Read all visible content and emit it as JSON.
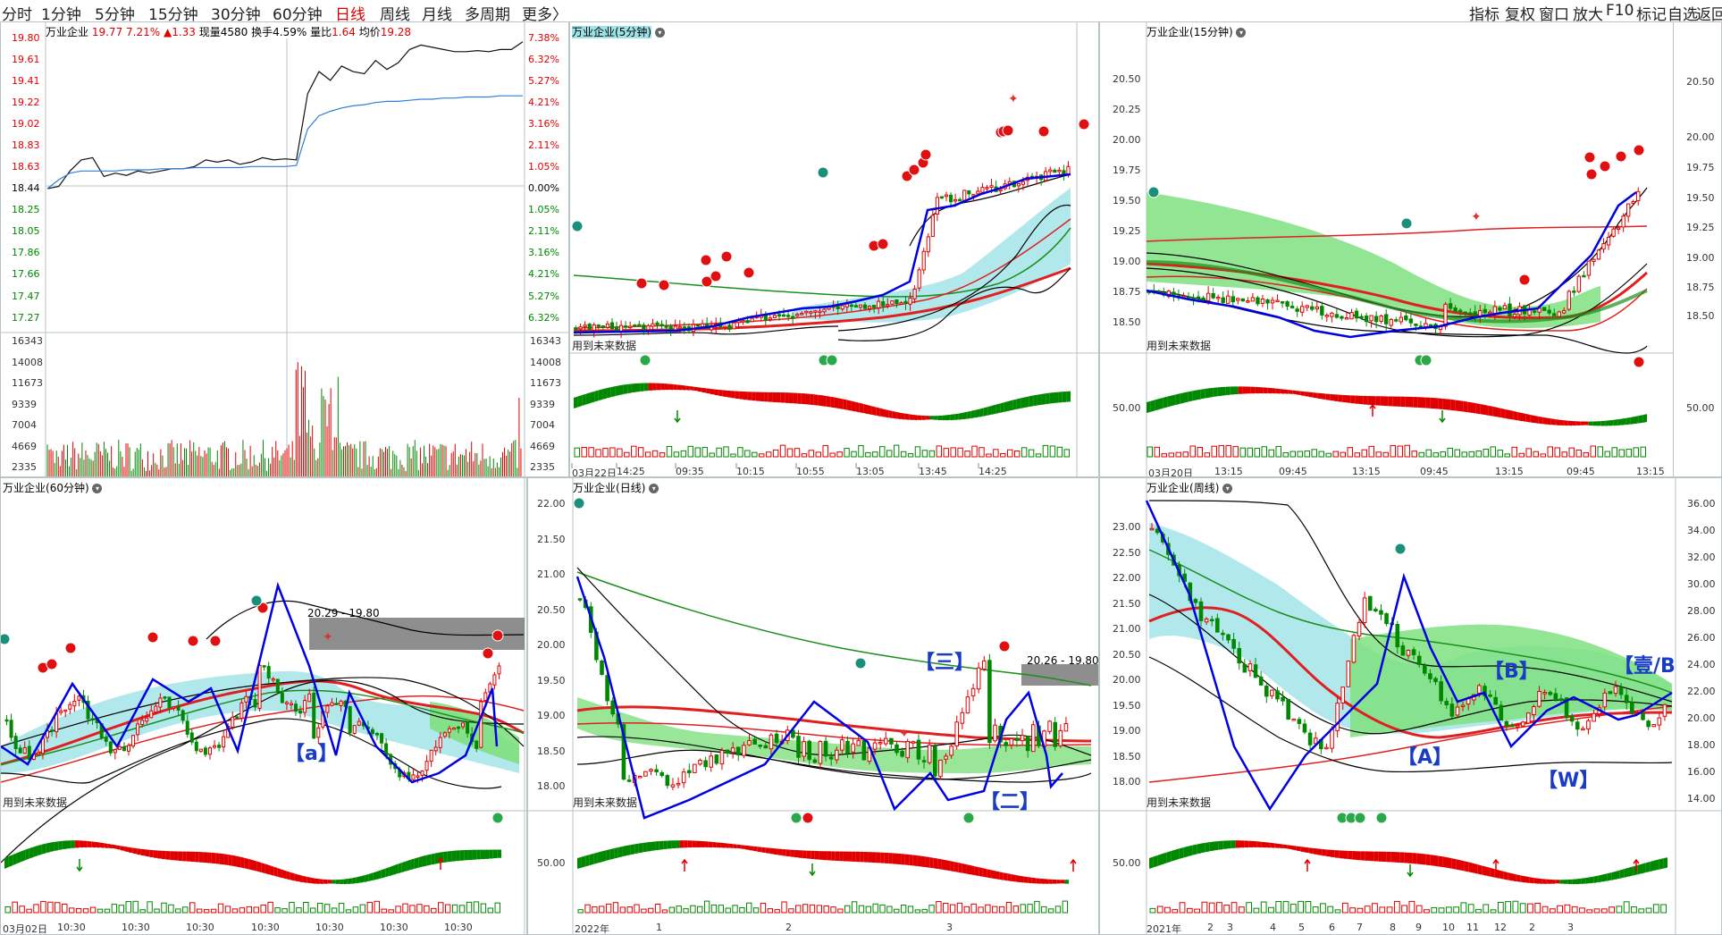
{
  "toolbar": {
    "periods": [
      "分时",
      "1分钟",
      "5分钟",
      "15分钟",
      "30分钟",
      "60分钟",
      "日线",
      "周线",
      "月线",
      "多周期",
      "更多〉"
    ],
    "active": "日线",
    "right": [
      "指标",
      "复权",
      "窗口",
      "放大",
      "F10",
      "标记",
      "自选",
      "返回"
    ]
  },
  "intraday": {
    "title": "万业企业",
    "price": "19.77",
    "pct": "7.21%",
    "chg": "▲1.33",
    "vol_label": "现量",
    "vol": "4580",
    "turnover_label": "换手",
    "turnover": "4.59%",
    "ratio_label": "量比",
    "ratio": "1.64",
    "avg_label": "均价",
    "avg": "19.28",
    "price_axis": [
      "19.80",
      "19.61",
      "19.41",
      "19.22",
      "19.02",
      "18.83",
      "18.63",
      "18.44",
      "18.25",
      "18.05",
      "17.86",
      "17.66",
      "17.47",
      "17.27"
    ],
    "pct_axis": [
      "7.38%",
      "6.32%",
      "5.27%",
      "4.21%",
      "3.16%",
      "2.11%",
      "1.05%",
      "0.00%",
      "1.05%",
      "2.11%",
      "3.16%",
      "4.21%",
      "5.27%",
      "6.32%"
    ],
    "vol_axis": [
      "16343",
      "14008",
      "11673",
      "9339",
      "7004",
      "4669",
      "2335"
    ],
    "price_line": [
      18.44,
      18.46,
      18.6,
      18.7,
      18.72,
      18.55,
      18.58,
      18.56,
      18.6,
      18.58,
      18.6,
      18.62,
      18.62,
      18.64,
      18.7,
      18.68,
      18.7,
      18.66,
      18.68,
      18.72,
      18.7,
      18.71,
      18.7,
      19.3,
      19.5,
      19.42,
      19.55,
      19.5,
      19.48,
      19.6,
      19.52,
      19.58,
      19.7,
      19.74,
      19.72,
      19.7,
      19.68,
      19.68,
      19.69,
      19.68,
      19.7,
      19.7,
      19.77
    ],
    "avg_line": [
      18.44,
      18.52,
      18.58,
      18.6,
      18.6,
      18.6,
      18.6,
      18.61,
      18.61,
      18.61,
      18.62,
      18.62,
      18.62,
      18.63,
      18.63,
      18.63,
      18.63,
      18.63,
      18.64,
      18.64,
      18.64,
      18.64,
      18.65,
      18.98,
      19.1,
      19.14,
      19.17,
      19.19,
      19.2,
      19.22,
      19.23,
      19.23,
      19.24,
      19.25,
      19.25,
      19.26,
      19.26,
      19.27,
      19.27,
      19.27,
      19.28,
      19.28,
      19.28
    ]
  },
  "panels": {
    "p5": {
      "title": "万业企业",
      "period": "(5分钟)",
      "axis": [],
      "times": [
        "03月22日",
        "14:25",
        "09:35",
        "10:15",
        "10:55",
        "13:05",
        "13:45",
        "14:25"
      ],
      "future": "用到未来数据"
    },
    "p15": {
      "title": "万业企业",
      "period": "(15分钟)",
      "axis": [
        "20.50",
        "20.25",
        "20.00",
        "19.75",
        "19.50",
        "19.25",
        "19.00",
        "18.75",
        "18.50"
      ],
      "sub_axis": "50.00",
      "times": [
        "03月20日",
        "13:15",
        "09:45",
        "13:15",
        "09:45",
        "13:15",
        "09:45",
        "13:15"
      ],
      "future": "用到未来数据"
    },
    "p60": {
      "title": "万业企业",
      "period": "(60分钟)",
      "range": "20.29 - 19.80",
      "label_a": "【a】",
      "times": [
        "03月02日",
        "10:30",
        "10:30",
        "10:30",
        "10:30",
        "10:30",
        "10:30",
        "10:30"
      ],
      "future": "用到未来数据"
    },
    "pday": {
      "title": "万业企业",
      "period": "(日线)",
      "axis": [
        "22.00",
        "21.50",
        "21.00",
        "20.50",
        "20.00",
        "19.50",
        "19.00",
        "18.50",
        "18.00"
      ],
      "sub_axis": "50.00",
      "range": "20.26 - 19.80",
      "label_3": "【三】",
      "label_2": "【二】",
      "times": [
        "2022年",
        "1",
        "2",
        "3"
      ],
      "future": "用到未来数据"
    },
    "pweek": {
      "title": "万业企业",
      "period": "(周线)",
      "axis": [
        "23.00",
        "22.50",
        "22.00",
        "21.50",
        "21.00",
        "20.50",
        "20.00",
        "19.50",
        "19.00",
        "18.50",
        "18.00"
      ],
      "axis_r": [
        "36.00",
        "34.00",
        "32.00",
        "30.00",
        "28.00",
        "26.00",
        "24.00",
        "22.00",
        "20.00",
        "18.00",
        "16.00",
        "14.00"
      ],
      "sub_axis": "50.00",
      "label_B": "【B】",
      "label_A": "【A】",
      "label_W": "【W】",
      "label_1B": "【壹/B",
      "times": [
        "2021年",
        "2",
        "3",
        "4",
        "5",
        "6",
        "7",
        "8",
        "9",
        "10",
        "11",
        "12",
        "2",
        "3"
      ],
      "future": "用到未来数据"
    },
    "p15r": {
      "axis": [
        "20.50",
        "20.00",
        "19.75",
        "19.50",
        "19.25",
        "19.00",
        "18.75",
        "18.50"
      ],
      "sub_axis": "50.00"
    }
  },
  "colors": {
    "up": "#e00000",
    "down": "#008800",
    "ma_blue": "#0000e0",
    "band_green": "#7fe07f",
    "band_cyan": "#a8e6ea"
  }
}
